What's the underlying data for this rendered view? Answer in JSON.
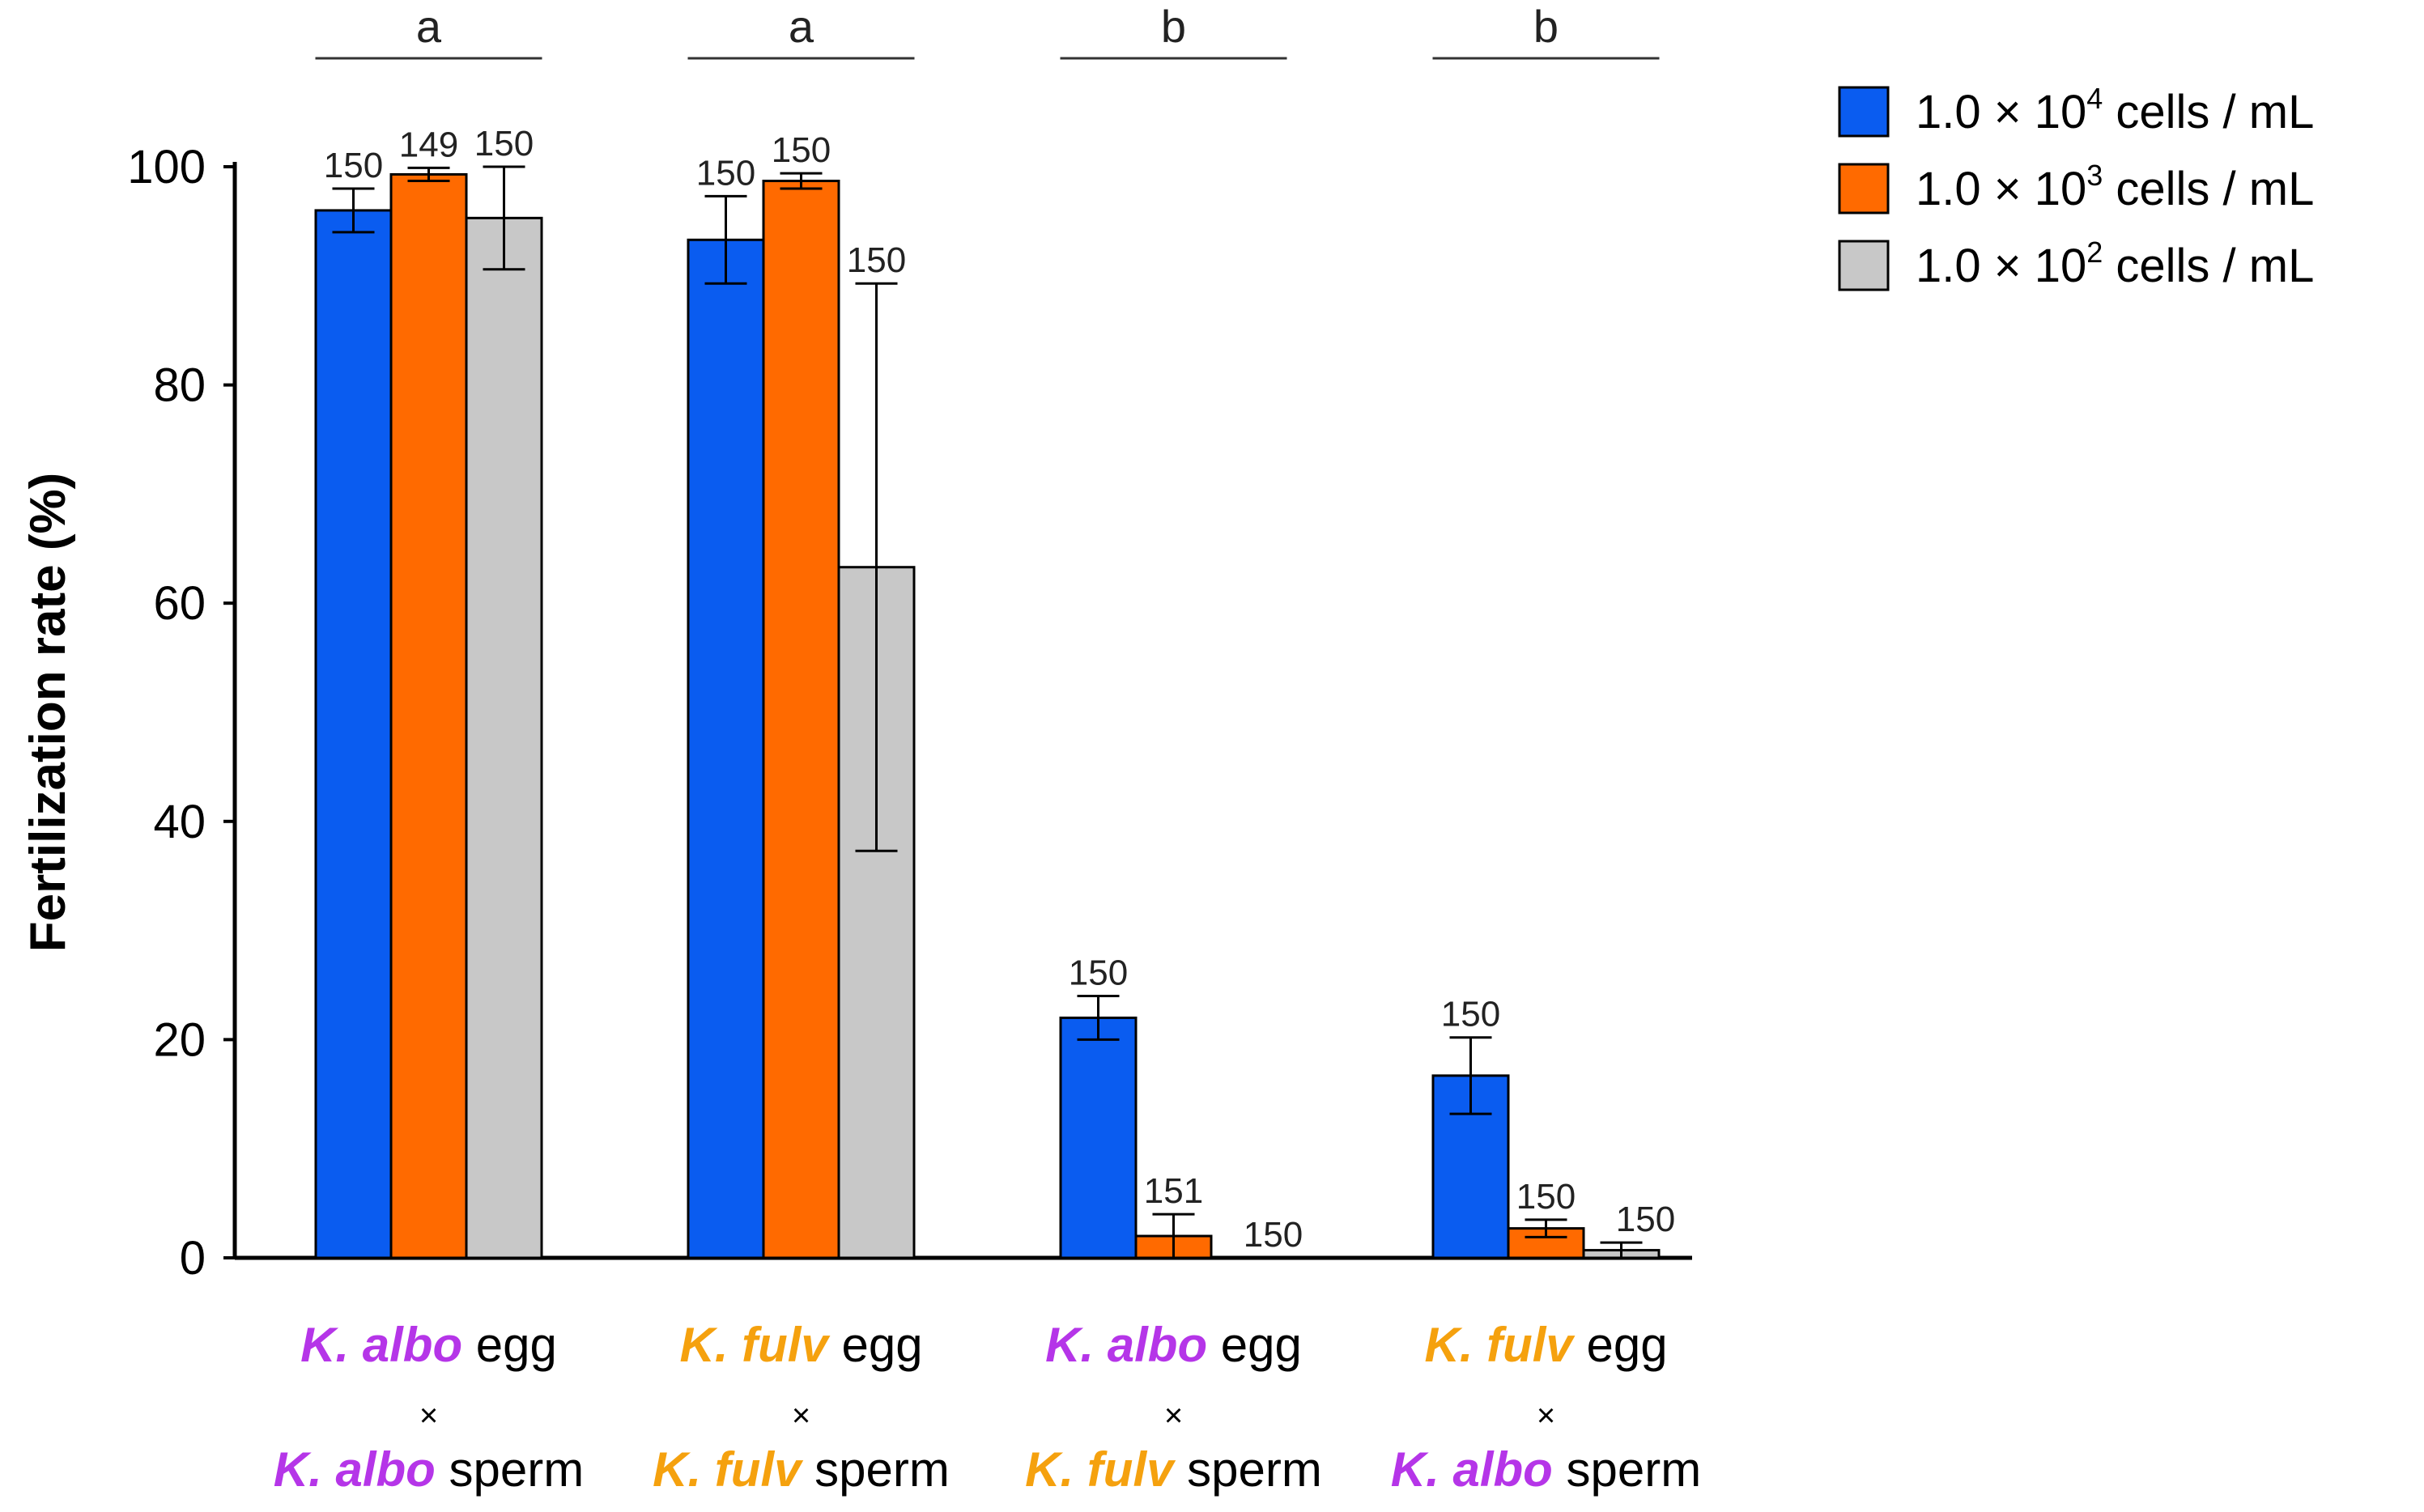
{
  "chart_data": {
    "type": "bar",
    "title": "",
    "xlabel": "",
    "ylabel": "Fertilization rate (%)",
    "ylim": [
      0,
      100
    ],
    "yticks": [
      "0",
      "20",
      "40",
      "60",
      "80",
      "100"
    ],
    "categories": [
      {
        "egg_species": "K. albo",
        "egg_word": "egg",
        "cross": "×",
        "sperm_species": "K. albo",
        "sperm_word": "sperm",
        "significance": "a"
      },
      {
        "egg_species": "K. fulv",
        "egg_word": "egg",
        "cross": "×",
        "sperm_species": "K. fulv",
        "sperm_word": "sperm",
        "significance": "a"
      },
      {
        "egg_species": "K. albo",
        "egg_word": "egg",
        "cross": "×",
        "sperm_species": "K. fulv",
        "sperm_word": "sperm",
        "significance": "b"
      },
      {
        "egg_species": "K. fulv",
        "egg_word": "egg",
        "cross": "×",
        "sperm_species": "K. albo",
        "sperm_word": "sperm",
        "significance": "b"
      }
    ],
    "series": [
      {
        "name": "1.0 × 10^4 cells / mL",
        "legend_main": "1.0 × 10",
        "legend_exp": "4",
        "legend_unit": "cells / mL",
        "color": "#0a5cf0",
        "values": [
          96,
          93.3,
          22,
          16.7
        ],
        "errors": [
          2,
          4,
          2,
          3.5
        ],
        "n": [
          "150",
          "150",
          "150",
          "150"
        ]
      },
      {
        "name": "1.0 × 10^3 cells / mL",
        "legend_main": "1.0 × 10",
        "legend_exp": "3",
        "legend_unit": "cells / mL",
        "color": "#ff6a00",
        "values": [
          99.3,
          98.7,
          2,
          2.7
        ],
        "errors": [
          0.6,
          0.7,
          2,
          0.8
        ],
        "n": [
          "149",
          "150",
          "151",
          "150"
        ]
      },
      {
        "name": "1.0 × 10^2 cells / mL",
        "legend_main": "1.0 × 10",
        "legend_exp": "2",
        "legend_unit": "cells / mL",
        "color": "#c8c8c8",
        "values": [
          95.3,
          63.3,
          0,
          0.7
        ],
        "errors": [
          4.7,
          26,
          0,
          0.7
        ],
        "n": [
          "150",
          "150",
          "150",
          "150"
        ]
      }
    ],
    "legend_position": "top-right"
  }
}
